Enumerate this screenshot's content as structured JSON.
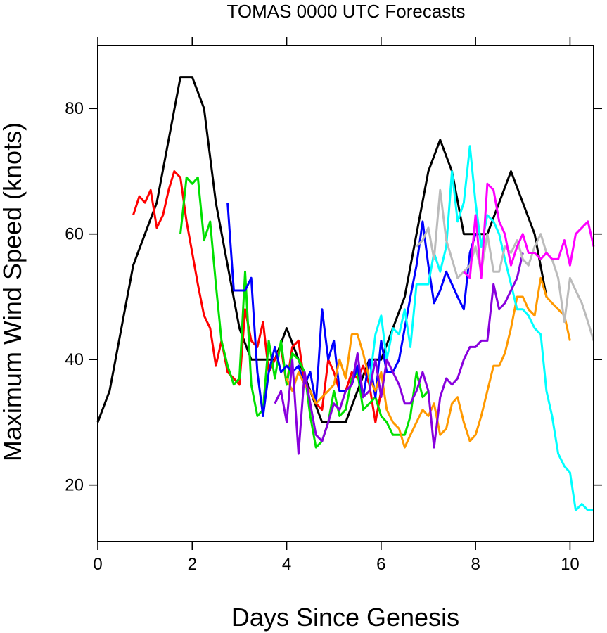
{
  "chart_data": {
    "type": "line",
    "title": "TOMAS 0000 UTC Forecasts",
    "xlabel": "Days Since Genesis",
    "ylabel": "Maximum Wind Speed (knots)",
    "xlim": [
      0,
      10.5
    ],
    "ylim": [
      11,
      90
    ],
    "xticks": [
      0,
      2,
      4,
      6,
      8,
      10
    ],
    "yticks": [
      20,
      40,
      60,
      80
    ],
    "grid": false,
    "legend": "none",
    "series": [
      {
        "color": "#000000",
        "x": [
          0,
          0.25,
          0.5,
          0.75,
          1.0,
          1.25,
          1.5,
          1.75,
          2.0,
          2.25,
          2.5,
          2.75,
          3.0,
          3.25,
          3.5,
          3.75,
          4.0,
          4.25,
          4.5,
          4.75,
          5.0,
          5.25,
          5.5,
          5.75,
          6.0,
          6.25,
          6.5,
          6.75,
          7.0,
          7.25,
          7.5,
          7.75,
          8.0,
          8.25,
          8.5,
          8.75,
          9.0,
          9.25,
          9.5
        ],
        "y": [
          30,
          35,
          45,
          55,
          60,
          65,
          75,
          85,
          85,
          80,
          65,
          55,
          45,
          40,
          40,
          40,
          45,
          40,
          35,
          30,
          30,
          30,
          35,
          40,
          40,
          45,
          50,
          60,
          70,
          75,
          70,
          60,
          60,
          60,
          65,
          70,
          65,
          60,
          50
        ]
      },
      {
        "color": "#ff0000",
        "x": [
          0.75,
          0.88,
          1.0,
          1.12,
          1.25,
          1.38,
          1.5,
          1.62,
          1.75,
          1.88,
          2.0,
          2.12,
          2.25,
          2.38,
          2.5,
          2.62,
          2.75,
          2.88,
          3.0,
          3.12,
          3.25,
          3.38,
          3.5,
          3.62,
          3.75,
          3.88,
          4.0,
          4.12,
          4.25,
          4.38,
          4.5,
          4.62,
          4.75,
          4.88,
          5.0,
          5.12,
          5.25,
          5.38,
          5.5,
          5.62,
          5.75,
          5.88,
          6.0
        ],
        "y": [
          63,
          66,
          65,
          67,
          61,
          63,
          67,
          70,
          69,
          62,
          57,
          52,
          47,
          45,
          39,
          43,
          38,
          37,
          36,
          48,
          43,
          42,
          46,
          38,
          40,
          42,
          36,
          42,
          43,
          36,
          35,
          33,
          32,
          40,
          38,
          35,
          35,
          38,
          37,
          39,
          36,
          30,
          35
        ]
      },
      {
        "color": "#00e000",
        "x": [
          1.75,
          1.88,
          2.0,
          2.12,
          2.25,
          2.38,
          2.5,
          2.62,
          2.75,
          2.88,
          3.0,
          3.12,
          3.25,
          3.38,
          3.5,
          3.62,
          3.75,
          3.88,
          4.0,
          4.12,
          4.25,
          4.38,
          4.5,
          4.62,
          4.75,
          4.88,
          5.0,
          5.12,
          5.25,
          5.38,
          5.5,
          5.62,
          5.75,
          5.88,
          6.0,
          6.12,
          6.25,
          6.38,
          6.5,
          6.62,
          6.75,
          6.88,
          7.0
        ],
        "y": [
          60,
          69,
          68,
          69,
          59,
          62,
          52,
          43,
          39,
          36,
          37,
          54,
          36,
          31,
          32,
          43,
          37,
          43,
          36,
          41,
          40,
          38,
          31,
          26,
          27,
          30,
          35,
          31,
          32,
          37,
          38,
          32,
          33,
          34,
          31,
          30,
          28,
          28,
          28,
          31,
          38,
          34,
          35
        ]
      },
      {
        "color": "#0000ff",
        "x": [
          2.75,
          2.88,
          3.0,
          3.12,
          3.25,
          3.38,
          3.5,
          3.62,
          3.75,
          3.88,
          4.0,
          4.12,
          4.25,
          4.38,
          4.5,
          4.62,
          4.75,
          4.88,
          5.0,
          5.12,
          5.25,
          5.38,
          5.5,
          5.62,
          5.75,
          5.88,
          6.0,
          6.12,
          6.25,
          6.38,
          6.5,
          6.62,
          6.75,
          6.88,
          7.0,
          7.12,
          7.25,
          7.38,
          7.5,
          7.62,
          7.75,
          7.88,
          8.0
        ],
        "y": [
          65,
          51,
          51,
          51,
          53,
          38,
          31,
          38,
          42,
          38,
          39,
          38,
          39,
          36,
          38,
          33,
          48,
          40,
          43,
          35,
          35,
          36,
          39,
          34,
          40,
          34,
          43,
          38,
          38,
          40,
          45,
          50,
          55,
          62,
          55,
          49,
          51,
          54,
          52,
          50,
          48,
          57,
          60
        ]
      },
      {
        "color": "#ff9900",
        "x": [
          4.0,
          4.12,
          4.25,
          4.38,
          4.5,
          4.62,
          4.75,
          4.88,
          5.0,
          5.12,
          5.25,
          5.38,
          5.5,
          5.62,
          5.75,
          5.88,
          6.0,
          6.12,
          6.25,
          6.38,
          6.5,
          6.62,
          6.75,
          6.88,
          7.0,
          7.12,
          7.25,
          7.38,
          7.5,
          7.62,
          7.75,
          7.88,
          8.0,
          8.12,
          8.25,
          8.38,
          8.5,
          8.62,
          8.75,
          8.88,
          9.0,
          9.12,
          9.25,
          9.38,
          9.5,
          9.62,
          9.75,
          9.88,
          10.0
        ],
        "y": [
          37,
          35,
          38,
          36,
          35,
          33,
          34,
          35,
          36,
          40,
          37,
          44,
          44,
          41,
          37,
          35,
          38,
          32,
          30,
          29,
          26,
          28,
          30,
          32,
          31,
          33,
          28,
          29,
          33,
          34,
          30,
          27,
          28,
          31,
          35,
          39,
          39,
          41,
          45,
          50,
          50,
          48,
          47,
          53,
          50,
          49,
          48,
          47,
          43
        ]
      },
      {
        "color": "#00ffff",
        "x": [
          5.75,
          5.88,
          6.0,
          6.12,
          6.25,
          6.38,
          6.5,
          6.62,
          6.75,
          6.88,
          7.0,
          7.12,
          7.25,
          7.38,
          7.5,
          7.62,
          7.75,
          7.88,
          8.0,
          8.12,
          8.25,
          8.38,
          8.5,
          8.62,
          8.75,
          8.88,
          9.0,
          9.12,
          9.25,
          9.38,
          9.5,
          9.62,
          9.75,
          9.88,
          10.0,
          10.12,
          10.25,
          10.38,
          10.5
        ],
        "y": [
          36,
          44,
          47,
          40,
          45,
          44,
          48,
          42,
          52,
          52,
          52,
          57,
          54,
          58,
          70,
          62,
          65,
          74,
          65,
          58,
          63,
          62,
          60,
          56,
          52,
          48,
          48,
          47,
          45,
          44,
          35,
          31,
          25,
          23,
          22,
          16,
          17,
          16,
          16
        ]
      },
      {
        "color": "#8800dd",
        "x": [
          3.75,
          3.88,
          4.0,
          4.12,
          4.25,
          4.38,
          4.5,
          4.62,
          4.75,
          4.88,
          5.0,
          5.12,
          5.25,
          5.38,
          5.5,
          5.62,
          5.75,
          5.88,
          6.0,
          6.12,
          6.25,
          6.38,
          6.5,
          6.62,
          6.75,
          6.88,
          7.0,
          7.12,
          7.25,
          7.38,
          7.5,
          7.62,
          7.75,
          7.88,
          8.0,
          8.12,
          8.25,
          8.38,
          8.5,
          8.62,
          8.75,
          8.88,
          9.0
        ],
        "y": [
          33,
          35,
          30,
          40,
          25,
          38,
          33,
          28,
          27,
          30,
          33,
          32,
          35,
          36,
          41,
          34,
          35,
          40,
          34,
          40,
          38,
          36,
          33,
          33,
          35,
          38,
          35,
          26,
          34,
          37,
          36,
          37,
          40,
          42,
          42,
          43,
          43,
          52,
          48,
          49,
          51,
          53,
          57
        ]
      },
      {
        "color": "#bbbbbb",
        "x": [
          6.75,
          6.88,
          7.0,
          7.12,
          7.25,
          7.38,
          7.5,
          7.62,
          7.75,
          7.88,
          8.0,
          8.12,
          8.25,
          8.38,
          8.5,
          8.62,
          8.75,
          8.88,
          9.0,
          9.12,
          9.25,
          9.38,
          9.5,
          9.62,
          9.75,
          9.88,
          10.0,
          10.12,
          10.25,
          10.38,
          10.5
        ],
        "y": [
          58,
          59,
          61,
          56,
          67,
          59,
          56,
          53,
          54,
          55,
          58,
          54,
          60,
          54,
          54,
          58,
          57,
          59,
          56,
          55,
          58,
          60,
          57,
          56,
          53,
          46,
          53,
          51,
          49,
          46,
          43
        ]
      },
      {
        "color": "#ff00ff",
        "x": [
          7.75,
          7.88,
          8.0,
          8.12,
          8.25,
          8.38,
          8.5,
          8.62,
          8.75,
          8.88,
          9.0,
          9.12,
          9.25,
          9.38,
          9.5,
          9.62,
          9.75,
          9.88,
          10.0,
          10.12,
          10.25,
          10.38,
          10.5
        ],
        "y": [
          54,
          53,
          63,
          53,
          68,
          67,
          62,
          60,
          55,
          58,
          60,
          57,
          57,
          56,
          57,
          56,
          56,
          59,
          55,
          60,
          61,
          62,
          58
        ]
      }
    ]
  }
}
